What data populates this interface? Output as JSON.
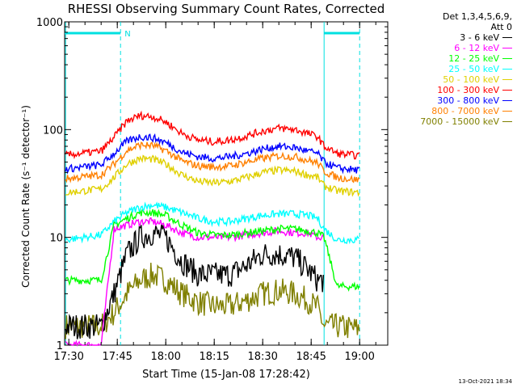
{
  "chart_data": {
    "type": "line",
    "title": "RHESSI Observing Summary Count Rates, Corrected",
    "xlabel": "Start Time (15-Jan-08 17:28:42)",
    "ylabel": "Corrected Count Rate (s⁻¹ detector⁻¹)",
    "yscale": "log",
    "ylim": [
      1,
      1000
    ],
    "xlim_minutes": [
      0,
      100
    ],
    "x_ticks": [
      "17:30",
      "17:45",
      "18:00",
      "18:15",
      "18:30",
      "18:45",
      "19:00"
    ],
    "y_ticks": [
      "1",
      "10",
      "100",
      "1000"
    ],
    "flags": [
      {
        "label": "N",
        "start": "17:28",
        "end": "17:46"
      },
      {
        "label": "",
        "start": "18:49",
        "end": "19:00"
      }
    ],
    "night_boundaries": [
      "17:29",
      "17:46",
      "18:49",
      "19:00"
    ],
    "legend_header": [
      "Det 1,3,4,5,6,9,",
      "Att 0"
    ],
    "series": [
      {
        "name": "3 - 6 keV",
        "color": "#000000",
        "x": [
          "17:29",
          "17:40",
          "17:44",
          "17:48",
          "17:52",
          "17:56",
          "18:00",
          "18:05",
          "18:10",
          "18:15",
          "18:20",
          "18:25",
          "18:30",
          "18:35",
          "18:40",
          "18:44",
          "18:47",
          "18:49"
        ],
        "y": [
          1.5,
          1.5,
          3,
          7,
          10,
          11,
          10,
          6,
          4.5,
          4.5,
          4.5,
          5.5,
          7,
          7,
          6.5,
          5,
          4,
          4
        ]
      },
      {
        "name": "6 - 12 keV",
        "color": "#ff00ff",
        "x": [
          "17:29",
          "17:40",
          "17:44",
          "17:48",
          "17:52",
          "17:56",
          "18:00",
          "18:05",
          "18:10",
          "18:15",
          "18:20",
          "18:25",
          "18:30",
          "18:35",
          "18:40",
          "18:44",
          "18:47",
          "18:49"
        ],
        "y": [
          1,
          1,
          12,
          13,
          14,
          14,
          13,
          11,
          10,
          10,
          10,
          10.5,
          11,
          11.5,
          11,
          11,
          10,
          10
        ]
      },
      {
        "name": "12 - 25 keV",
        "color": "#00ff00",
        "x": [
          "17:29",
          "17:40",
          "17:44",
          "17:48",
          "17:52",
          "17:56",
          "18:00",
          "18:05",
          "18:10",
          "18:15",
          "18:20",
          "18:25",
          "18:30",
          "18:35",
          "18:40",
          "18:44",
          "18:47",
          "18:49",
          "18:53",
          "19:00"
        ],
        "y": [
          4,
          4,
          13,
          15,
          17,
          17,
          16,
          13,
          11,
          10.5,
          10.5,
          11,
          11.5,
          12,
          12,
          11.5,
          11,
          10,
          3.5,
          3.5
        ]
      },
      {
        "name": "25 - 50 keV",
        "color": "#00ffff",
        "x": [
          "17:29",
          "17:40",
          "17:44",
          "17:48",
          "17:52",
          "17:56",
          "18:00",
          "18:05",
          "18:10",
          "18:15",
          "18:20",
          "18:25",
          "18:30",
          "18:35",
          "18:40",
          "18:44",
          "18:47",
          "18:49",
          "18:53",
          "19:00"
        ],
        "y": [
          9.5,
          10.5,
          14,
          17,
          19,
          20,
          19,
          17,
          15,
          14,
          14,
          15,
          16,
          16.5,
          16.5,
          16,
          15,
          12,
          9.5,
          9.5
        ]
      },
      {
        "name": "50 - 100 keV",
        "color": "#e0d000",
        "x": [
          "17:29",
          "17:40",
          "17:44",
          "17:48",
          "17:52",
          "17:56",
          "18:00",
          "18:05",
          "18:10",
          "18:15",
          "18:20",
          "18:25",
          "18:30",
          "18:35",
          "18:40",
          "18:44",
          "18:47",
          "18:49",
          "18:53",
          "19:00"
        ],
        "y": [
          26,
          28,
          36,
          48,
          54,
          53,
          48,
          38,
          33,
          32,
          33,
          36,
          40,
          42,
          41,
          38,
          36,
          30,
          27,
          26
        ]
      },
      {
        "name": "100 - 300 keV",
        "color": "#ff0000",
        "x": [
          "17:29",
          "17:40",
          "17:44",
          "17:48",
          "17:52",
          "17:56",
          "18:00",
          "18:05",
          "18:10",
          "18:15",
          "18:20",
          "18:25",
          "18:30",
          "18:35",
          "18:40",
          "18:44",
          "18:47",
          "18:49",
          "18:53",
          "19:00"
        ],
        "y": [
          58,
          63,
          85,
          120,
          135,
          132,
          118,
          92,
          80,
          77,
          80,
          87,
          97,
          103,
          100,
          92,
          86,
          70,
          60,
          57
        ]
      },
      {
        "name": "300 - 800 keV",
        "color": "#0000ff",
        "x": [
          "17:29",
          "17:40",
          "17:44",
          "17:48",
          "17:52",
          "17:56",
          "18:00",
          "18:05",
          "18:10",
          "18:15",
          "18:20",
          "18:25",
          "18:30",
          "18:35",
          "18:40",
          "18:44",
          "18:47",
          "18:49",
          "18:53",
          "19:00"
        ],
        "y": [
          43,
          47,
          60,
          78,
          86,
          84,
          76,
          62,
          56,
          54,
          56,
          60,
          66,
          70,
          68,
          63,
          60,
          50,
          44,
          42
        ]
      },
      {
        "name": "800 - 7000 keV",
        "color": "#ff8000",
        "x": [
          "17:29",
          "17:40",
          "17:44",
          "17:48",
          "17:52",
          "17:56",
          "18:00",
          "18:05",
          "18:10",
          "18:15",
          "18:20",
          "18:25",
          "18:30",
          "18:35",
          "18:40",
          "18:44",
          "18:47",
          "18:49",
          "18:53",
          "19:00"
        ],
        "y": [
          35,
          38,
          48,
          64,
          72,
          71,
          64,
          51,
          46,
          45,
          46,
          50,
          54,
          57,
          56,
          52,
          49,
          41,
          36,
          34
        ]
      },
      {
        "name": "7000 - 15000 keV",
        "color": "#808000",
        "x": [
          "17:29",
          "17:40",
          "17:44",
          "17:48",
          "17:52",
          "17:56",
          "18:00",
          "18:05",
          "18:10",
          "18:15",
          "18:20",
          "18:25",
          "18:30",
          "18:35",
          "18:40",
          "18:44",
          "18:47",
          "18:49",
          "18:53",
          "19:00"
        ],
        "y": [
          1.5,
          1.5,
          2,
          3,
          4,
          4.5,
          4,
          3,
          2.5,
          2.3,
          2.3,
          2.6,
          3,
          3.2,
          3,
          2.6,
          2.2,
          1.5,
          1.5,
          1.4
        ]
      }
    ]
  },
  "footer": "13-Oct-2021 18:34"
}
